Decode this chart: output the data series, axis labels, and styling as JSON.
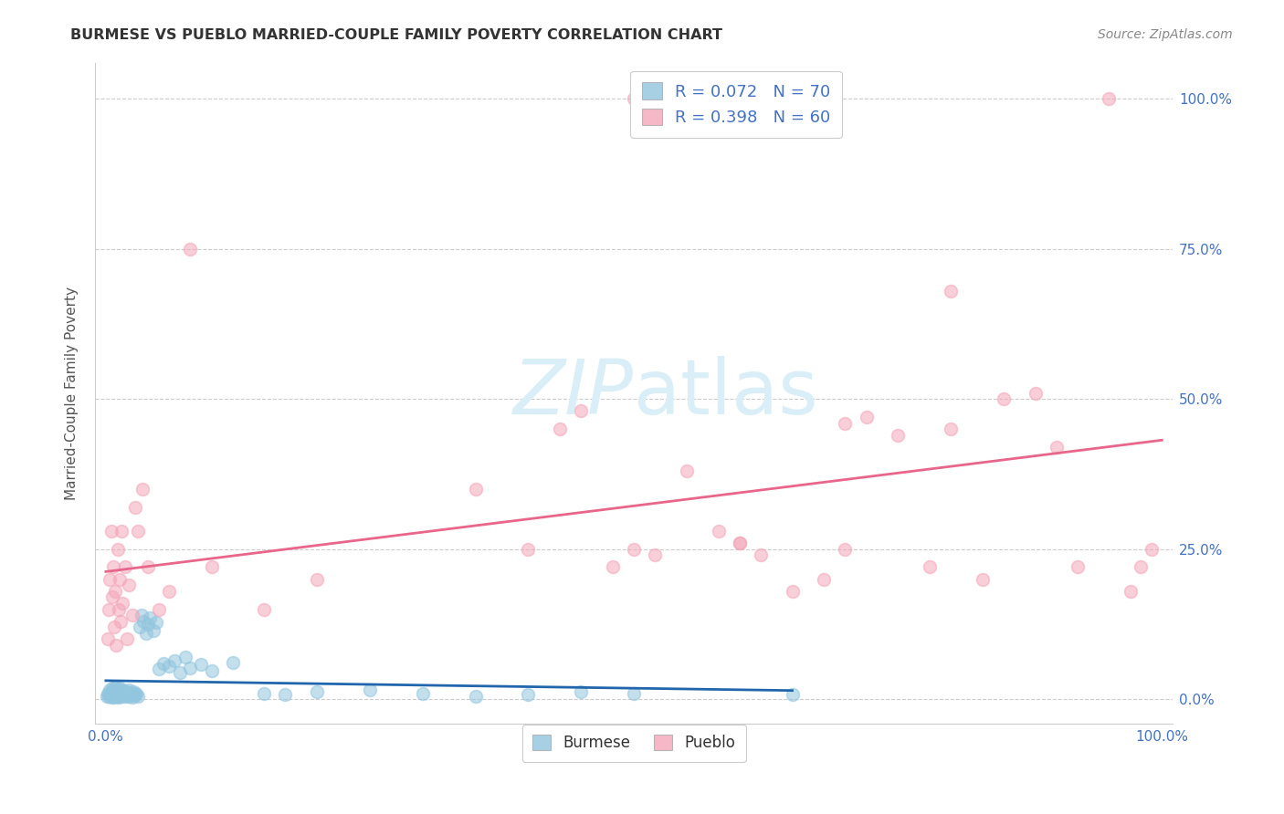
{
  "title": "BURMESE VS PUEBLO MARRIED-COUPLE FAMILY POVERTY CORRELATION CHART",
  "source": "Source: ZipAtlas.com",
  "ylabel": "Married-Couple Family Poverty",
  "ytick_labels": [
    "0.0%",
    "25.0%",
    "50.0%",
    "75.0%",
    "100.0%"
  ],
  "ytick_values": [
    0.0,
    0.25,
    0.5,
    0.75,
    1.0
  ],
  "xtick_labels": [
    "0.0%",
    "100.0%"
  ],
  "xtick_values": [
    0.0,
    1.0
  ],
  "legend_label1": "Burmese",
  "legend_label2": "Pueblo",
  "legend_R1": "R = 0.072",
  "legend_N1": "N = 70",
  "legend_R2": "R = 0.398",
  "legend_N2": "N = 60",
  "burmese_color": "#92c5de",
  "burmese_edge_color": "#92c5de",
  "pueblo_color": "#f4a6b8",
  "pueblo_edge_color": "#f4a6b8",
  "burmese_line_color": "#2166ac",
  "pueblo_line_color": "#e8668a",
  "watermark_color": "#daeef8",
  "title_color": "#333333",
  "source_color": "#888888",
  "tick_color": "#4472c4",
  "ylabel_color": "#555555",
  "grid_color": "#cccccc",
  "legend_edge_color": "#cccccc",
  "xlim": [
    -0.01,
    1.01
  ],
  "ylim": [
    -0.04,
    1.06
  ],
  "burmese_x": [
    0.001,
    0.002,
    0.003,
    0.004,
    0.004,
    0.005,
    0.005,
    0.006,
    0.006,
    0.007,
    0.007,
    0.008,
    0.008,
    0.009,
    0.009,
    0.01,
    0.01,
    0.011,
    0.011,
    0.012,
    0.012,
    0.013,
    0.013,
    0.014,
    0.015,
    0.015,
    0.016,
    0.017,
    0.018,
    0.019,
    0.02,
    0.02,
    0.021,
    0.022,
    0.023,
    0.024,
    0.025,
    0.026,
    0.027,
    0.028,
    0.029,
    0.03,
    0.032,
    0.034,
    0.036,
    0.038,
    0.04,
    0.042,
    0.045,
    0.048,
    0.05,
    0.055,
    0.06,
    0.065,
    0.07,
    0.075,
    0.08,
    0.09,
    0.1,
    0.12,
    0.15,
    0.17,
    0.2,
    0.25,
    0.3,
    0.35,
    0.4,
    0.45,
    0.5,
    0.65
  ],
  "burmese_y": [
    0.005,
    0.01,
    0.005,
    0.008,
    0.015,
    0.003,
    0.012,
    0.007,
    0.018,
    0.005,
    0.01,
    0.004,
    0.015,
    0.008,
    0.02,
    0.006,
    0.012,
    0.005,
    0.01,
    0.015,
    0.003,
    0.008,
    0.018,
    0.005,
    0.012,
    0.007,
    0.015,
    0.005,
    0.01,
    0.008,
    0.005,
    0.012,
    0.008,
    0.015,
    0.005,
    0.01,
    0.003,
    0.012,
    0.008,
    0.006,
    0.01,
    0.005,
    0.12,
    0.14,
    0.13,
    0.11,
    0.125,
    0.135,
    0.115,
    0.128,
    0.05,
    0.06,
    0.055,
    0.065,
    0.045,
    0.07,
    0.052,
    0.058,
    0.048,
    0.062,
    0.01,
    0.008,
    0.012,
    0.015,
    0.01,
    0.005,
    0.008,
    0.012,
    0.01,
    0.008
  ],
  "pueblo_x": [
    0.002,
    0.003,
    0.004,
    0.005,
    0.006,
    0.007,
    0.008,
    0.009,
    0.01,
    0.011,
    0.012,
    0.013,
    0.014,
    0.015,
    0.016,
    0.018,
    0.02,
    0.022,
    0.025,
    0.028,
    0.03,
    0.035,
    0.04,
    0.05,
    0.06,
    0.08,
    0.1,
    0.15,
    0.2,
    0.35,
    0.4,
    0.43,
    0.45,
    0.48,
    0.5,
    0.52,
    0.55,
    0.58,
    0.6,
    0.62,
    0.65,
    0.68,
    0.7,
    0.72,
    0.75,
    0.78,
    0.8,
    0.83,
    0.85,
    0.88,
    0.9,
    0.92,
    0.95,
    0.97,
    0.98,
    0.99,
    0.5,
    0.6,
    0.7,
    0.8
  ],
  "pueblo_y": [
    0.1,
    0.15,
    0.2,
    0.28,
    0.17,
    0.22,
    0.12,
    0.18,
    0.09,
    0.25,
    0.15,
    0.2,
    0.13,
    0.28,
    0.16,
    0.22,
    0.1,
    0.19,
    0.14,
    0.32,
    0.28,
    0.35,
    0.22,
    0.15,
    0.18,
    0.75,
    0.22,
    0.15,
    0.2,
    0.35,
    0.25,
    0.45,
    0.48,
    0.22,
    1.0,
    0.24,
    0.38,
    0.28,
    0.26,
    0.24,
    0.18,
    0.2,
    0.46,
    0.47,
    0.44,
    0.22,
    0.45,
    0.2,
    0.5,
    0.51,
    0.42,
    0.22,
    1.0,
    0.18,
    0.22,
    0.25,
    0.25,
    0.26,
    0.25,
    0.68
  ]
}
